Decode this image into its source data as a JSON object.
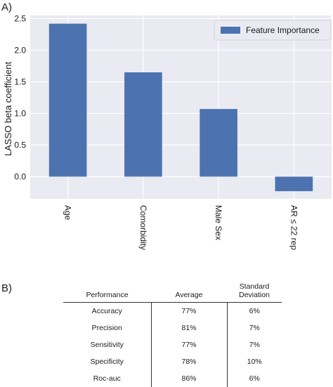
{
  "panel_a_label": "A)",
  "panel_b_label": "B)",
  "chart_data": {
    "type": "bar",
    "categories": [
      "Age",
      "Comorbidity",
      "Male Sex",
      "AR ≤ 22 rep"
    ],
    "series": [
      {
        "name": "Feature Importance",
        "values": [
          2.42,
          1.65,
          1.07,
          -0.23
        ]
      }
    ],
    "ylabel": "LASSO beta coefficient",
    "xlabel": "",
    "ylim": [
      -0.35,
      2.55
    ],
    "yticks": [
      0.0,
      0.5,
      1.0,
      1.5,
      2.0,
      2.5
    ],
    "ytick_labels": [
      "0.0",
      "0.5",
      "1.0",
      "1.5",
      "2.0",
      "2.5"
    ],
    "grid": true,
    "legend_position": "top-right",
    "colors": {
      "bar": "#4c72b0",
      "plot_bg": "#eaeaf2",
      "grid": "#ffffff"
    }
  },
  "table": {
    "headers": {
      "metric": "Performance",
      "average": "Average",
      "sd_line1": "Standard",
      "sd_line2": "Deviation"
    },
    "rows": [
      {
        "metric": "Accuracy",
        "average": "77%",
        "sd": "6%"
      },
      {
        "metric": "Precision",
        "average": "81%",
        "sd": "7%"
      },
      {
        "metric": "Sensitivity",
        "average": "77%",
        "sd": "7%"
      },
      {
        "metric": "Specificity",
        "average": "78%",
        "sd": "10%"
      },
      {
        "metric": "Roc-auc",
        "average": "86%",
        "sd": "6%"
      }
    ]
  }
}
